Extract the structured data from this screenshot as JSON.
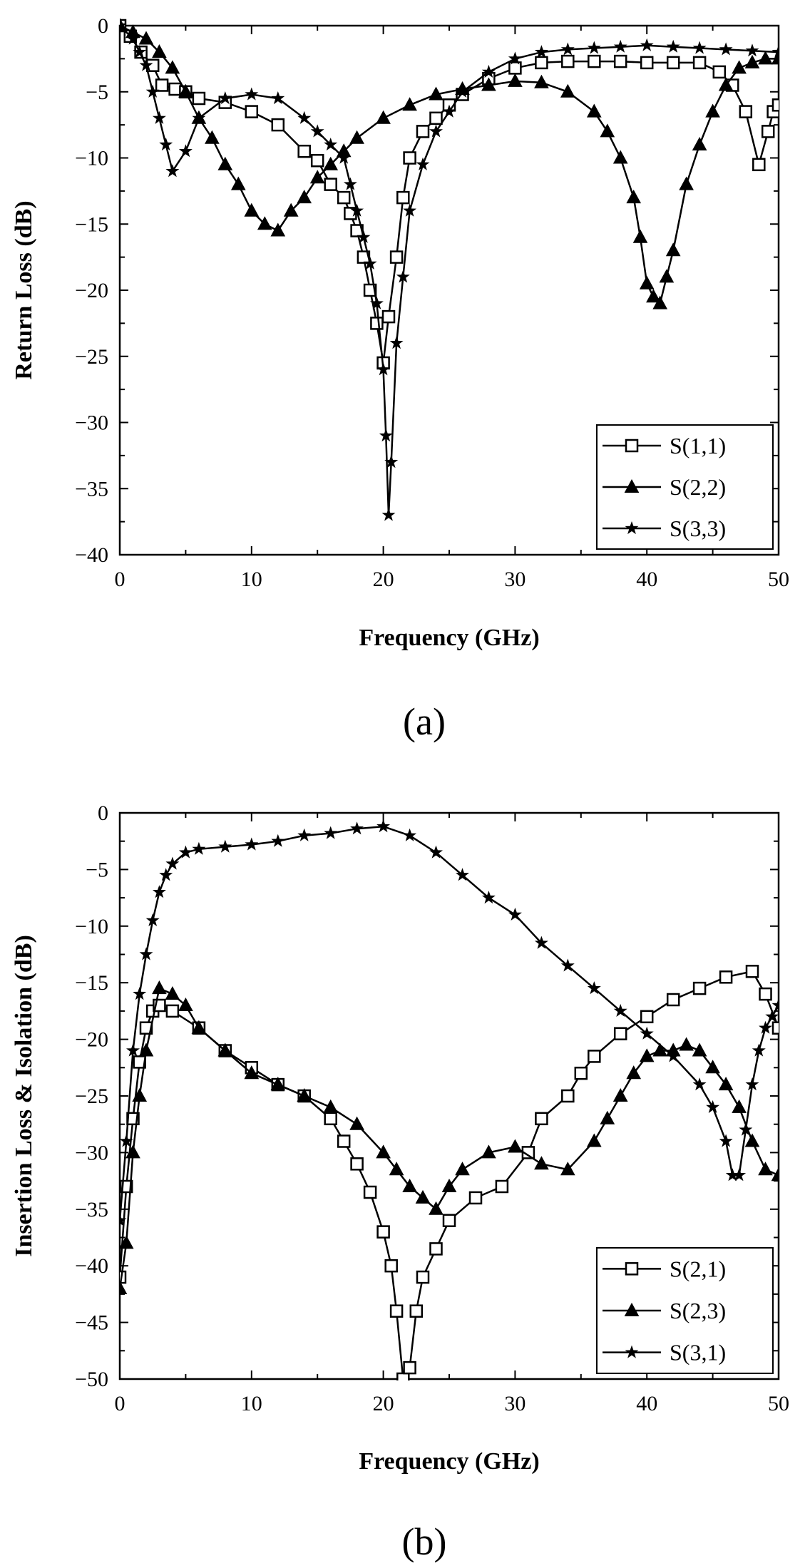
{
  "chart_data": [
    {
      "type": "line",
      "panel_label": "(a)",
      "xlabel": "Frequency (GHz)",
      "ylabel": "Return Loss (dB)",
      "xlim": [
        0,
        50
      ],
      "ylim": [
        -40,
        0
      ],
      "xticks": [
        0,
        10,
        20,
        30,
        40,
        50
      ],
      "yticks": [
        0,
        -5,
        -10,
        -15,
        -20,
        -25,
        -30,
        -35,
        -40
      ],
      "legend_position": "bottom-right",
      "series": [
        {
          "name": "S(1,1)",
          "marker": "open-square",
          "x": [
            0,
            0.8,
            1.6,
            2.5,
            3.2,
            4.2,
            5,
            6,
            8,
            10,
            12,
            14,
            15,
            16,
            17,
            17.5,
            18,
            18.5,
            19,
            19.5,
            20,
            20.4,
            21,
            21.5,
            22,
            23,
            24,
            25,
            26,
            28,
            30,
            32,
            34,
            36,
            38,
            40,
            42,
            44,
            45.5,
            46.5,
            47.5,
            48.5,
            49.2,
            49.6,
            50
          ],
          "y": [
            0,
            -0.8,
            -2,
            -3,
            -4.5,
            -4.8,
            -5,
            -5.5,
            -5.8,
            -6.5,
            -7.5,
            -9.5,
            -10.2,
            -12,
            -13,
            -14.2,
            -15.5,
            -17.5,
            -20,
            -22.5,
            -25.5,
            -22,
            -17.5,
            -13,
            -10,
            -8,
            -7,
            -6,
            -5.2,
            -4,
            -3.2,
            -2.8,
            -2.7,
            -2.7,
            -2.7,
            -2.8,
            -2.8,
            -2.8,
            -3.5,
            -4.5,
            -6.5,
            -10.5,
            -8,
            -6.5,
            -6
          ]
        },
        {
          "name": "S(2,2)",
          "marker": "filled-triangle",
          "x": [
            0,
            1,
            2,
            3,
            4,
            5,
            6,
            7,
            8,
            9,
            10,
            11,
            12,
            13,
            14,
            15,
            16,
            17,
            18,
            20,
            22,
            24,
            26,
            28,
            30,
            32,
            34,
            36,
            37,
            38,
            39,
            39.5,
            40,
            40.5,
            41,
            41.5,
            42,
            43,
            44,
            45,
            46,
            47,
            48,
            49,
            50
          ],
          "y": [
            0,
            -0.5,
            -1,
            -2,
            -3.2,
            -5,
            -7,
            -8.5,
            -10.5,
            -12,
            -14,
            -15,
            -15.5,
            -14,
            -13,
            -11.5,
            -10.5,
            -9.5,
            -8.5,
            -7,
            -6,
            -5.2,
            -4.8,
            -4.5,
            -4.2,
            -4.3,
            -5,
            -6.5,
            -8,
            -10,
            -13,
            -16,
            -19.5,
            -20.5,
            -21,
            -19,
            -17,
            -12,
            -9,
            -6.5,
            -4.5,
            -3.2,
            -2.8,
            -2.5,
            -2.5
          ]
        },
        {
          "name": "S(3,3)",
          "marker": "filled-star",
          "x": [
            0,
            1,
            1.5,
            2,
            2.5,
            3,
            3.5,
            4,
            5,
            6,
            8,
            10,
            12,
            14,
            15,
            16,
            17,
            17.5,
            18,
            18.5,
            19,
            19.5,
            20,
            20.2,
            20.4,
            20.6,
            21,
            21.5,
            22,
            23,
            24,
            25,
            26,
            28,
            30,
            32,
            34,
            36,
            38,
            40,
            42,
            44,
            46,
            48,
            50
          ],
          "y": [
            0,
            -1,
            -2,
            -3,
            -5,
            -7,
            -9,
            -11,
            -9.5,
            -7,
            -5.5,
            -5.2,
            -5.5,
            -7,
            -8,
            -9,
            -10,
            -12,
            -14,
            -16,
            -18,
            -21,
            -26,
            -31,
            -37,
            -33,
            -24,
            -19,
            -14,
            -10.5,
            -8,
            -6.5,
            -5,
            -3.5,
            -2.5,
            -2,
            -1.8,
            -1.7,
            -1.6,
            -1.5,
            -1.6,
            -1.7,
            -1.8,
            -1.9,
            -2
          ]
        }
      ]
    },
    {
      "type": "line",
      "panel_label": "(b)",
      "xlabel": "Frequency (GHz)",
      "ylabel": "Insertion Loss & Isolation (dB)",
      "xlim": [
        0,
        50
      ],
      "ylim": [
        -50,
        0
      ],
      "xticks": [
        0,
        10,
        20,
        30,
        40,
        50
      ],
      "yticks": [
        0,
        -5,
        -10,
        -15,
        -20,
        -25,
        -30,
        -35,
        -40,
        -45,
        -50
      ],
      "legend_position": "bottom-right",
      "series": [
        {
          "name": "S(2,1)",
          "marker": "open-square",
          "x": [
            0,
            0.5,
            1,
            1.5,
            2,
            2.5,
            3,
            4,
            6,
            8,
            10,
            12,
            14,
            16,
            17,
            18,
            19,
            20,
            20.6,
            21,
            21.5,
            22,
            22.5,
            23,
            24,
            25,
            27,
            29,
            31,
            32,
            34,
            35,
            36,
            38,
            40,
            42,
            44,
            46,
            48,
            49,
            50
          ],
          "y": [
            -41,
            -33,
            -27,
            -22,
            -19,
            -17.5,
            -17,
            -17.5,
            -19,
            -21,
            -22.5,
            -24,
            -25,
            -27,
            -29,
            -31,
            -33.5,
            -37,
            -40,
            -44,
            -50,
            -49,
            -44,
            -41,
            -38.5,
            -36,
            -34,
            -33,
            -30,
            -27,
            -25,
            -23,
            -21.5,
            -19.5,
            -18,
            -16.5,
            -15.5,
            -14.5,
            -14,
            -16,
            -19
          ]
        },
        {
          "name": "S(2,3)",
          "marker": "filled-triangle",
          "x": [
            0,
            0.5,
            1,
            1.5,
            2,
            3,
            4,
            5,
            6,
            8,
            10,
            12,
            14,
            16,
            18,
            20,
            21,
            22,
            23,
            24,
            25,
            26,
            28,
            30,
            32,
            34,
            36,
            37,
            38,
            39,
            40,
            41,
            42,
            43,
            44,
            45,
            46,
            47,
            48,
            49,
            50
          ],
          "y": [
            -42,
            -38,
            -30,
            -25,
            -21,
            -15.5,
            -16,
            -17,
            -19,
            -21,
            -23,
            -24,
            -25,
            -26,
            -27.5,
            -30,
            -31.5,
            -33,
            -34,
            -35,
            -33,
            -31.5,
            -30,
            -29.5,
            -31,
            -31.5,
            -29,
            -27,
            -25,
            -23,
            -21.5,
            -21,
            -21,
            -20.5,
            -21,
            -22.5,
            -24,
            -26,
            -29,
            -31.5,
            -32
          ]
        },
        {
          "name": "S(3,1)",
          "marker": "filled-star",
          "x": [
            0,
            0.5,
            1,
            1.5,
            2,
            2.5,
            3,
            3.5,
            4,
            5,
            6,
            8,
            10,
            12,
            14,
            16,
            18,
            20,
            22,
            24,
            26,
            28,
            30,
            32,
            34,
            36,
            38,
            40,
            42,
            44,
            45,
            46,
            46.5,
            47,
            47.5,
            48,
            48.5,
            49,
            49.5,
            50
          ],
          "y": [
            -36,
            -29,
            -21,
            -16,
            -12.5,
            -9.5,
            -7,
            -5.5,
            -4.5,
            -3.5,
            -3.2,
            -3,
            -2.8,
            -2.5,
            -2,
            -1.8,
            -1.4,
            -1.2,
            -2,
            -3.5,
            -5.5,
            -7.5,
            -9,
            -11.5,
            -13.5,
            -15.5,
            -17.5,
            -19.5,
            -21.5,
            -24,
            -26,
            -29,
            -32,
            -32,
            -28,
            -24,
            -21,
            -19,
            -18,
            -17
          ]
        }
      ]
    }
  ]
}
